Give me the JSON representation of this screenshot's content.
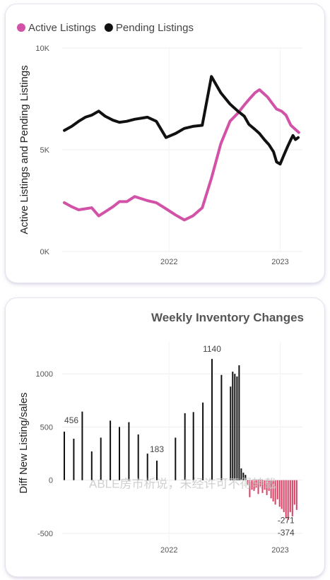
{
  "top_chart": {
    "chart_data": {
      "type": "line",
      "title": "",
      "xlabel": "",
      "ylabel": "Active Listings and Pending Listings",
      "ylim": [
        0,
        10000
      ],
      "y_ticks": [
        "0K",
        "5K",
        "10K"
      ],
      "x_ticks": [
        "2022",
        "2023"
      ],
      "xlim": [
        "2021-01-15",
        "2023-03-15"
      ],
      "legend_position": "top-left",
      "grid": true,
      "series": [
        {
          "name": "Active Listings",
          "color": "#d252a8",
          "points": [
            [
              "2021-01-22",
              2400
            ],
            [
              "2021-02-15",
              2200
            ],
            [
              "2021-03-10",
              2050
            ],
            [
              "2021-04-01",
              2100
            ],
            [
              "2021-04-22",
              2150
            ],
            [
              "2021-05-15",
              1750
            ],
            [
              "2021-06-05",
              1950
            ],
            [
              "2021-07-01",
              2200
            ],
            [
              "2021-07-22",
              2450
            ],
            [
              "2021-08-15",
              2450
            ],
            [
              "2021-09-10",
              2700
            ],
            [
              "2021-10-01",
              2600
            ],
            [
              "2021-10-22",
              2500
            ],
            [
              "2021-11-20",
              2400
            ],
            [
              "2021-12-22",
              2100
            ],
            [
              "2022-01-22",
              1800
            ],
            [
              "2022-02-20",
              1550
            ],
            [
              "2022-03-20",
              1750
            ],
            [
              "2022-04-20",
              2150
            ],
            [
              "2022-05-20",
              3600
            ],
            [
              "2022-06-20",
              5300
            ],
            [
              "2022-07-20",
              6400
            ],
            [
              "2022-08-15",
              6800
            ],
            [
              "2022-09-05",
              7200
            ],
            [
              "2022-09-25",
              7550
            ],
            [
              "2022-10-10",
              7800
            ],
            [
              "2022-10-25",
              7950
            ],
            [
              "2022-11-05",
              7800
            ],
            [
              "2022-11-20",
              7600
            ],
            [
              "2022-12-05",
              7300
            ],
            [
              "2022-12-20",
              7000
            ],
            [
              "2023-01-05",
              6900
            ],
            [
              "2023-01-20",
              6700
            ],
            [
              "2023-02-05",
              6200
            ],
            [
              "2023-02-20",
              6000
            ],
            [
              "2023-03-03",
              5850
            ]
          ]
        },
        {
          "name": "Pending Listings",
          "color": "#111111",
          "points": [
            [
              "2021-01-22",
              5950
            ],
            [
              "2021-02-15",
              6150
            ],
            [
              "2021-03-10",
              6400
            ],
            [
              "2021-04-01",
              6600
            ],
            [
              "2021-04-22",
              6700
            ],
            [
              "2021-05-15",
              6900
            ],
            [
              "2021-06-05",
              6650
            ],
            [
              "2021-07-01",
              6450
            ],
            [
              "2021-07-22",
              6350
            ],
            [
              "2021-08-15",
              6400
            ],
            [
              "2021-09-10",
              6500
            ],
            [
              "2021-10-01",
              6550
            ],
            [
              "2021-10-22",
              6600
            ],
            [
              "2021-11-20",
              6400
            ],
            [
              "2021-12-22",
              5600
            ],
            [
              "2022-01-22",
              5800
            ],
            [
              "2022-02-20",
              6050
            ],
            [
              "2022-03-20",
              6150
            ],
            [
              "2022-04-20",
              6200
            ],
            [
              "2022-05-20",
              8600
            ],
            [
              "2022-06-20",
              7800
            ],
            [
              "2022-07-20",
              7250
            ],
            [
              "2022-08-15",
              6900
            ],
            [
              "2022-09-05",
              6650
            ],
            [
              "2022-09-20",
              6250
            ],
            [
              "2022-10-10",
              6000
            ],
            [
              "2022-10-25",
              5800
            ],
            [
              "2022-11-10",
              5500
            ],
            [
              "2022-11-25",
              5250
            ],
            [
              "2022-12-10",
              4900
            ],
            [
              "2022-12-20",
              4400
            ],
            [
              "2023-01-01",
              4300
            ],
            [
              "2023-01-12",
              4700
            ],
            [
              "2023-01-25",
              5150
            ],
            [
              "2023-02-05",
              5500
            ],
            [
              "2023-02-12",
              5700
            ],
            [
              "2023-02-20",
              5500
            ],
            [
              "2023-03-01",
              5600
            ]
          ]
        }
      ]
    }
  },
  "bottom_chart": {
    "chart_data": {
      "type": "bar",
      "title": "Weekly Inventory Changes",
      "xlabel": "",
      "ylabel": "Diff New Listing/sales",
      "ylim": [
        -600,
        1300
      ],
      "y_ticks": [
        "-500",
        "0",
        "500",
        "1000"
      ],
      "x_ticks": [
        "2022",
        "2023"
      ],
      "xlim": [
        "2021-01-15",
        "2023-03-15"
      ],
      "grid": true,
      "positive_color": "#111111",
      "negative_color": "#d94063",
      "data_labels": [
        {
          "text": "456",
          "x": "2021-02-15",
          "value": 456
        },
        {
          "text": "183",
          "x": "2022-01-01",
          "value": 183
        },
        {
          "text": "1140",
          "x": "2022-06-15",
          "value": 1140
        },
        {
          "text": "-271",
          "x": "2023-02-10",
          "value": -271
        },
        {
          "text": "-374",
          "x": "2023-02-10",
          "value": -374
        }
      ],
      "bars": [
        [
          "2021-01-22",
          456
        ],
        [
          "2021-02-22",
          390
        ],
        [
          "2021-03-22",
          645
        ],
        [
          "2021-04-22",
          270
        ],
        [
          "2021-05-22",
          400
        ],
        [
          "2021-06-22",
          560
        ],
        [
          "2021-07-22",
          500
        ],
        [
          "2021-08-22",
          545
        ],
        [
          "2021-09-22",
          430
        ],
        [
          "2021-10-22",
          250
        ],
        [
          "2021-11-22",
          183
        ],
        [
          "2022-01-22",
          400
        ],
        [
          "2022-02-22",
          630
        ],
        [
          "2022-03-22",
          640
        ],
        [
          "2022-04-22",
          730
        ],
        [
          "2022-05-22",
          1140
        ],
        [
          "2022-06-22",
          990
        ],
        [
          "2022-07-22",
          880
        ],
        [
          "2022-07-29",
          1020
        ],
        [
          "2022-08-05",
          1000
        ],
        [
          "2022-08-12",
          975
        ],
        [
          "2022-08-19",
          1080
        ],
        [
          "2022-08-26",
          110
        ],
        [
          "2022-09-02",
          70
        ],
        [
          "2022-09-09",
          50
        ],
        [
          "2022-09-16",
          -40
        ],
        [
          "2022-09-23",
          -160
        ],
        [
          "2022-09-30",
          -90
        ],
        [
          "2022-10-07",
          -100
        ],
        [
          "2022-10-14",
          -70
        ],
        [
          "2022-10-21",
          -130
        ],
        [
          "2022-10-28",
          -60
        ],
        [
          "2022-11-04",
          -120
        ],
        [
          "2022-11-11",
          -90
        ],
        [
          "2022-11-18",
          -140
        ],
        [
          "2022-11-25",
          -100
        ],
        [
          "2022-12-02",
          -170
        ],
        [
          "2022-12-09",
          -200
        ],
        [
          "2022-12-16",
          -230
        ],
        [
          "2022-12-23",
          -180
        ],
        [
          "2022-12-30",
          -250
        ],
        [
          "2023-01-06",
          -271
        ],
        [
          "2023-01-13",
          -300
        ],
        [
          "2023-01-20",
          -360
        ],
        [
          "2023-01-27",
          -374
        ],
        [
          "2023-02-03",
          -300
        ],
        [
          "2023-02-10",
          -340
        ],
        [
          "2023-02-17",
          -230
        ],
        [
          "2023-02-24",
          -280
        ]
      ]
    }
  },
  "watermark": "ABLE房市析说，未经许可不得转载"
}
